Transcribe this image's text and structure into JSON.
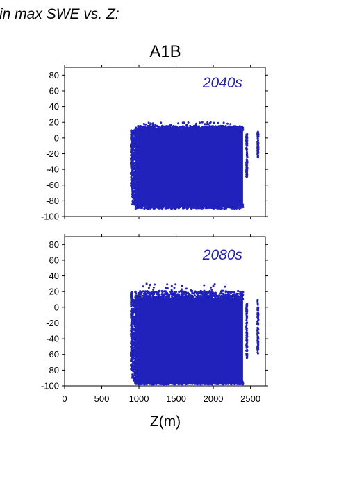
{
  "heading": "in max SWE vs. Z:",
  "scenario_title": "A1B",
  "colors": {
    "points": "#2121bb",
    "axes": "#000000",
    "label": "#2323aa"
  },
  "chart_data": [
    {
      "type": "scatter",
      "panel_label": "2040s",
      "xlim": [
        0,
        2700
      ],
      "ylim": [
        -100,
        90
      ],
      "x_ticks": [
        0,
        500,
        1000,
        1500,
        2000,
        2500
      ],
      "y_ticks": [
        -100,
        -80,
        -60,
        -40,
        -20,
        0,
        20,
        40,
        60,
        80
      ],
      "x_tick_labels_shown": false,
      "point_cloud": {
        "main_body": {
          "x_range": [
            950,
            2400
          ],
          "y_range": [
            -85,
            10
          ]
        },
        "sparse_low_column": {
          "x": 900,
          "y_range": [
            -65,
            10
          ]
        },
        "high_columns": [
          {
            "x": 2450,
            "y_range": [
              -50,
              5
            ]
          },
          {
            "x": 2600,
            "y_range": [
              -25,
              8
            ]
          }
        ],
        "max_y_approx": 20,
        "min_y_approx": -90
      }
    },
    {
      "type": "scatter",
      "panel_label": "2080s",
      "xlim": [
        0,
        2700
      ],
      "ylim": [
        -100,
        90
      ],
      "x_ticks": [
        0,
        500,
        1000,
        1500,
        2000,
        2500
      ],
      "y_ticks": [
        -100,
        -80,
        -60,
        -40,
        -20,
        0,
        20,
        40,
        60,
        80
      ],
      "x_tick_labels": [
        "0",
        "500",
        "1000",
        "1500",
        "2000",
        "2500"
      ],
      "xlabel": "Z(m)",
      "point_cloud": {
        "main_body": {
          "x_range": [
            950,
            2400
          ],
          "y_range": [
            -95,
            10
          ]
        },
        "sparse_low_column": {
          "x": 900,
          "y_range": [
            -80,
            20
          ]
        },
        "high_columns": [
          {
            "x": 2450,
            "y_range": [
              -65,
              5
            ]
          },
          {
            "x": 2600,
            "y_range": [
              -60,
              10
            ]
          }
        ],
        "max_y_approx": 30,
        "min_y_approx": -98
      }
    }
  ]
}
